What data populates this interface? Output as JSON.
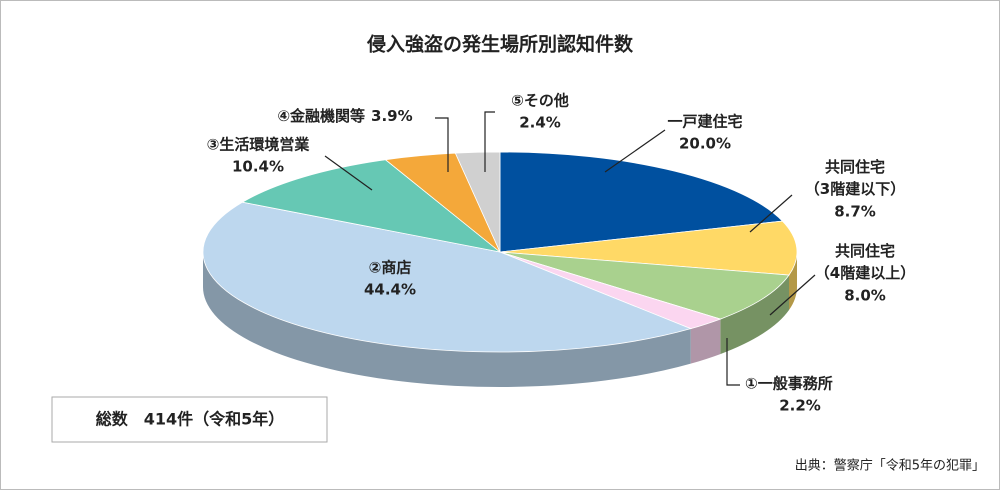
{
  "chart_data": {
    "type": "pie3d",
    "title": "侵入強盗の発生場所別認知件数",
    "categories": [
      "一戸建住宅",
      "共同住宅（3階建以下）",
      "共同住宅（4階建以上）",
      "①一般事務所",
      "②商店",
      "③生活環境営業",
      "④金融機関等",
      "⑤その他"
    ],
    "values": [
      20.0,
      8.7,
      8.0,
      2.2,
      44.4,
      10.4,
      3.9,
      2.4
    ],
    "value_labels": [
      "20.0%",
      "8.7%",
      "8.0%",
      "2.2%",
      "44.4%",
      "10.4%",
      "3.9%",
      "2.4%"
    ],
    "colors": [
      "#00509f",
      "#ffd966",
      "#a9d18e",
      "#fbd6f0",
      "#bdd7ee",
      "#66c8b4",
      "#f4a83a",
      "#d0d0d0"
    ],
    "total_note": "総数　414件（令和5年）",
    "source": "出典：警察庁「令和5年の犯罪」"
  }
}
